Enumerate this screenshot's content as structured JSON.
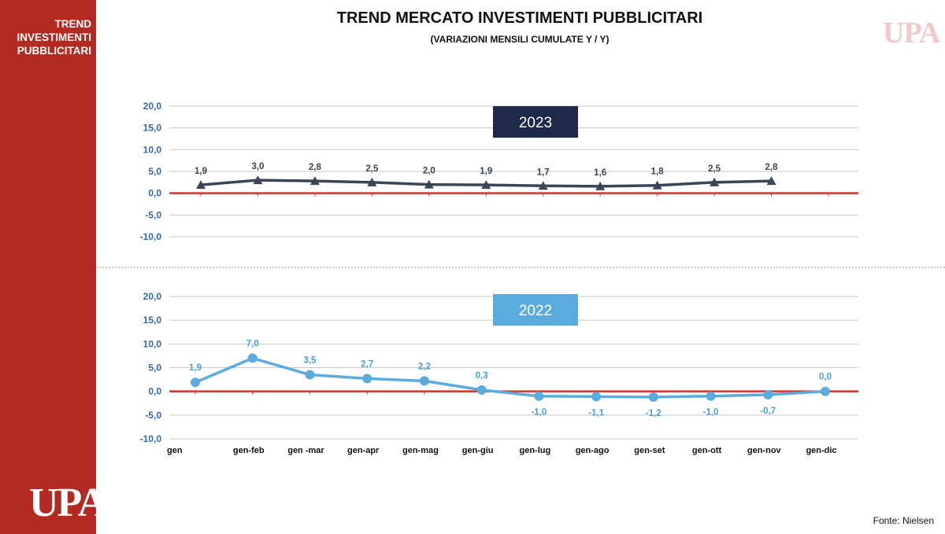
{
  "sidebar": {
    "title_lines": [
      "TREND",
      "INVESTIMENTI",
      "PUBBLICITARI"
    ],
    "logo": "UPA"
  },
  "header": {
    "title": "TREND MERCATO INVESTIMENTI PUBBLICITARI",
    "subtitle": "(VARIAZIONI MENSILI CUMULATE Y / Y)"
  },
  "corner_logo": "UPA",
  "source": "Fonte: Nielsen",
  "chart_data": [
    {
      "type": "line",
      "title": "2023",
      "title_bg": "#1f2a4a",
      "line_color": "#3a4556",
      "marker": "triangle",
      "label_color": "#3a4556",
      "ylim": [
        -10,
        20
      ],
      "yticks": [
        "20,0",
        "15,0",
        "10,0",
        "5,0",
        "0,0",
        "-5,0",
        "-10,0"
      ],
      "ytick_color": "#2e6bb5",
      "grid": true,
      "categories": [
        "gen",
        "gen-feb",
        "gen -mar",
        "gen-apr",
        "gen-mag",
        "gen-giu",
        "gen-lug",
        "gen-ago",
        "gen-set",
        "gen-ott",
        "gen-nov",
        "gen-dic"
      ],
      "show_xlabels": false,
      "values": [
        1.9,
        3.0,
        2.8,
        2.5,
        2.0,
        1.9,
        1.7,
        1.6,
        1.8,
        2.5,
        2.8,
        null
      ],
      "labels": [
        "1,9",
        "3,0",
        "2,8",
        "2,5",
        "2,0",
        "1,9",
        "1,7",
        "1,6",
        "1,8",
        "2,5",
        "2,8",
        ""
      ],
      "zero_line_color": "#d9302a"
    },
    {
      "type": "line",
      "title": "2022",
      "title_bg": "#5aacdf",
      "line_color": "#5aacdf",
      "marker": "circle",
      "label_color": "#4a9fd8",
      "ylim": [
        -10,
        20
      ],
      "yticks": [
        "20,0",
        "15,0",
        "10,0",
        "5,0",
        "0,0",
        "-5,0",
        "-10,0"
      ],
      "ytick_color": "#2e6bb5",
      "grid": true,
      "categories": [
        "gen",
        "gen-feb",
        "gen -mar",
        "gen-apr",
        "gen-mag",
        "gen-giu",
        "gen-lug",
        "gen-ago",
        "gen-set",
        "gen-ott",
        "gen-nov",
        "gen-dic"
      ],
      "show_xlabels": true,
      "values": [
        1.9,
        7.0,
        3.5,
        2.7,
        2.2,
        0.3,
        -1.0,
        -1.1,
        -1.2,
        -1.0,
        -0.7,
        0.0
      ],
      "labels": [
        "1,9",
        "7,0",
        "3,5",
        "2,7",
        "2,2",
        "0,3",
        "-1,0",
        "-1,1",
        "-1,2",
        "-1,0",
        "-0,7",
        "0,0"
      ],
      "zero_line_color": "#d9302a"
    }
  ]
}
